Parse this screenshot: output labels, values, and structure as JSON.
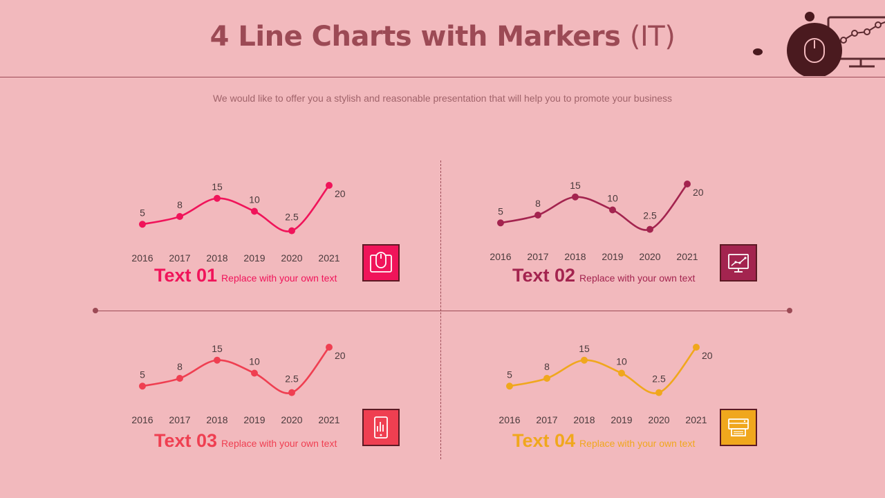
{
  "header": {
    "title_main": "4 Line Charts with Markers",
    "title_tag": "(IT)",
    "subtitle": "We would like to offer you a stylish and reasonable presentation that will help you to promote your business"
  },
  "colors": {
    "background": "#f2b9bd",
    "accent_dark": "#9c4a55",
    "chart1": "#f0145a",
    "chart2": "#a3244f",
    "chart3": "#ef3f51",
    "chart4": "#f0a71d"
  },
  "chart_data": [
    {
      "type": "line",
      "categories": [
        "2016",
        "2017",
        "2018",
        "2019",
        "2020",
        "2021"
      ],
      "values": [
        5,
        8,
        15,
        10,
        2.5,
        20
      ],
      "data_labels": [
        "5",
        "8",
        "15",
        "10",
        "2.5",
        "20"
      ],
      "color": "#f0145a",
      "caption": "Text 01",
      "description": "Replace with your own text",
      "icon": "mouse-icon",
      "ylim": [
        0,
        20
      ]
    },
    {
      "type": "line",
      "categories": [
        "2016",
        "2017",
        "2018",
        "2019",
        "2020",
        "2021"
      ],
      "values": [
        5,
        8,
        15,
        10,
        2.5,
        20
      ],
      "data_labels": [
        "5",
        "8",
        "15",
        "10",
        "2.5",
        "20"
      ],
      "color": "#a3244f",
      "caption": "Text 02",
      "description": "Replace with your own text",
      "icon": "monitor-chart-icon",
      "ylim": [
        0,
        20
      ]
    },
    {
      "type": "line",
      "categories": [
        "2016",
        "2017",
        "2018",
        "2019",
        "2020",
        "2021"
      ],
      "values": [
        5,
        8,
        15,
        10,
        2.5,
        20
      ],
      "data_labels": [
        "5",
        "8",
        "15",
        "10",
        "2.5",
        "20"
      ],
      "color": "#ef3f51",
      "caption": "Text 03",
      "description": "Replace with your own text",
      "icon": "tablet-chart-icon",
      "ylim": [
        0,
        20
      ]
    },
    {
      "type": "line",
      "categories": [
        "2016",
        "2017",
        "2018",
        "2019",
        "2020",
        "2021"
      ],
      "values": [
        5,
        8,
        15,
        10,
        2.5,
        20
      ],
      "data_labels": [
        "5",
        "8",
        "15",
        "10",
        "2.5",
        "20"
      ],
      "color": "#f0a71d",
      "caption": "Text 04",
      "description": "Replace with your own text",
      "icon": "printer-icon",
      "ylim": [
        0,
        20
      ]
    }
  ]
}
